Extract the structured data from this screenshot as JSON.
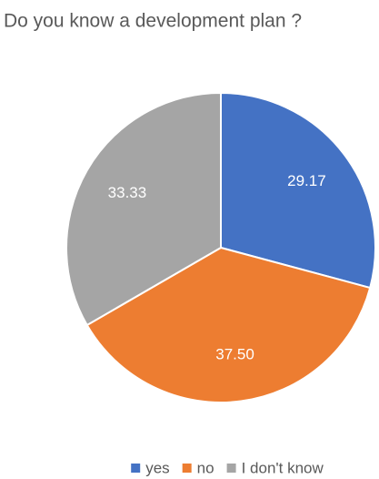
{
  "chart_data": {
    "type": "pie",
    "title": "Do you know a development plan ?",
    "categories": [
      "yes",
      "no",
      "I don't know"
    ],
    "values": [
      29.17,
      37.5,
      33.33
    ],
    "value_labels": [
      "29.17",
      "37.50",
      "33.33"
    ],
    "colors": [
      "#4472c4",
      "#ed7d31",
      "#a5a5a5"
    ],
    "legend": "bottom"
  }
}
